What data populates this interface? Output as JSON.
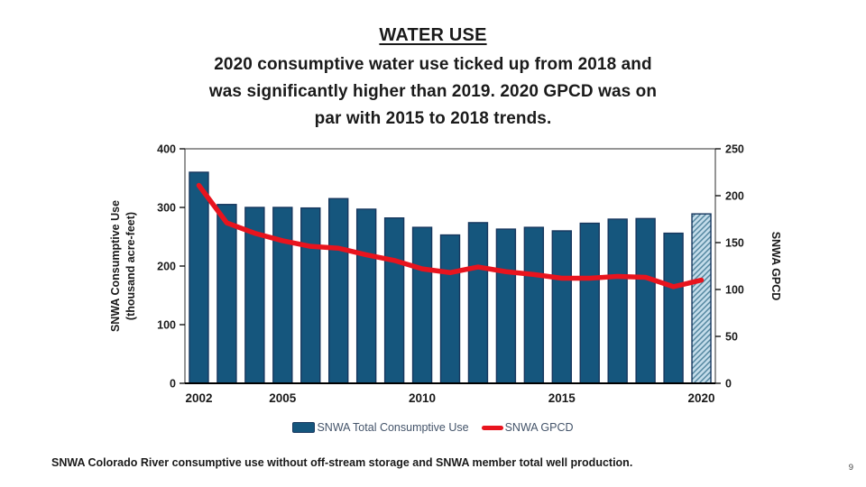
{
  "slide": {
    "title": "WATER USE",
    "subtitle_lines": [
      "2020 consumptive water use ticked up from 2018 and",
      "was significantly higher than 2019. 2020 GPCD was on",
      "par with 2015 to 2018 trends."
    ],
    "footer": "SNWA Colorado River consumptive use without off-stream storage and SNWA member total well production.",
    "page_number": "9"
  },
  "chart_data": {
    "type": "bar+line",
    "categories": [
      "2002",
      "2003",
      "2004",
      "2005",
      "2006",
      "2007",
      "2008",
      "2009",
      "2010",
      "2011",
      "2012",
      "2013",
      "2014",
      "2015",
      "2016",
      "2017",
      "2018",
      "2019",
      "2020"
    ],
    "series": [
      {
        "name": "SNWA Total Consumptive Use",
        "type": "bar",
        "axis": "left",
        "color": "#15567d",
        "border_color": "#17375e",
        "values": [
          360,
          305,
          300,
          300,
          299,
          315,
          297,
          282,
          266,
          253,
          274,
          263,
          266,
          260,
          273,
          280,
          281,
          256,
          289
        ],
        "hatched_category": "2020"
      },
      {
        "name": "SNWA GPCD",
        "type": "line",
        "axis": "right",
        "color": "#e8141e",
        "values": [
          211,
          171,
          160,
          152,
          146,
          144,
          137,
          131,
          122,
          118,
          124,
          119,
          116,
          112,
          112,
          114,
          113,
          103,
          110
        ]
      }
    ],
    "hatch": {
      "bg": "#c3dcea",
      "line": "#53869f"
    },
    "left_axis": {
      "label_line1": "SNWA Consumptive Use",
      "label_line2": "(thousand acre-feet)",
      "min": 0,
      "max": 400,
      "ticks": [
        0,
        100,
        200,
        300,
        400
      ]
    },
    "right_axis": {
      "label": "SNWA GPCD",
      "min": 0,
      "max": 250,
      "ticks": [
        0,
        50,
        100,
        150,
        200,
        250
      ]
    },
    "x_tick_labels": [
      "2002",
      "2005",
      "2010",
      "2015",
      "2020"
    ],
    "grid": false,
    "legend_position": "bottom"
  }
}
